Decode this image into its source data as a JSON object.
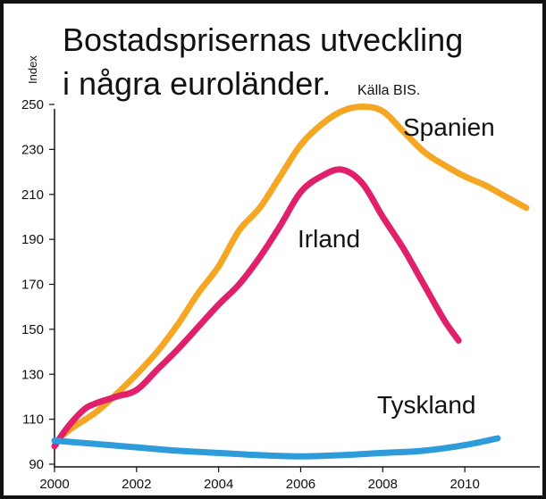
{
  "chart_data": {
    "type": "line",
    "title": "Bostadsprisernas utveckling",
    "title_line2": "i några euroländer.",
    "source": "Källa BIS.",
    "ylabel": "Index",
    "xlabel": "",
    "xlim": [
      2000,
      2011.5
    ],
    "ylim": [
      90,
      250
    ],
    "x_ticks": [
      "2000",
      "2002",
      "2004",
      "2006",
      "2008",
      "2010"
    ],
    "y_ticks": [
      "90",
      "110",
      "130",
      "150",
      "170",
      "190",
      "210",
      "230",
      "250"
    ],
    "grid": false,
    "legend": "labels at line ends",
    "series": [
      {
        "name": "Spanien",
        "color": "#F5A623",
        "x": [
          2000.2,
          2000.5,
          2001,
          2001.5,
          2002,
          2002.5,
          2003,
          2003.5,
          2004,
          2004.5,
          2005,
          2005.5,
          2006,
          2006.5,
          2007,
          2007.5,
          2008,
          2008.5,
          2009,
          2009.5,
          2010,
          2010.5,
          2011,
          2011.5
        ],
        "y": [
          103,
          107,
          113,
          121,
          130,
          140,
          152,
          166,
          178,
          194,
          204,
          218,
          232,
          241,
          247,
          249,
          247,
          238,
          229,
          223,
          218,
          214,
          209,
          204
        ]
      },
      {
        "name": "Irland",
        "color": "#E0206A",
        "x": [
          2000,
          2000.3,
          2000.7,
          2001,
          2001.5,
          2002,
          2002.5,
          2003,
          2003.5,
          2004,
          2004.5,
          2005,
          2005.5,
          2006,
          2006.5,
          2007,
          2007.5,
          2008,
          2008.5,
          2009,
          2009.5,
          2009.85
        ],
        "y": [
          98,
          106,
          114,
          117,
          120,
          123,
          132,
          141,
          151,
          161,
          170,
          182,
          196,
          211,
          218,
          221,
          215,
          200,
          186,
          170,
          154,
          145
        ]
      },
      {
        "name": "Tyskland",
        "color": "#2E9BDA",
        "x": [
          2000,
          2001,
          2002,
          2003,
          2004,
          2005,
          2006,
          2007,
          2008,
          2009,
          2010,
          2010.8
        ],
        "y": [
          100.5,
          99,
          97.5,
          96,
          95,
          94,
          93.5,
          94,
          95,
          96,
          98.5,
          101.5
        ]
      }
    ]
  }
}
